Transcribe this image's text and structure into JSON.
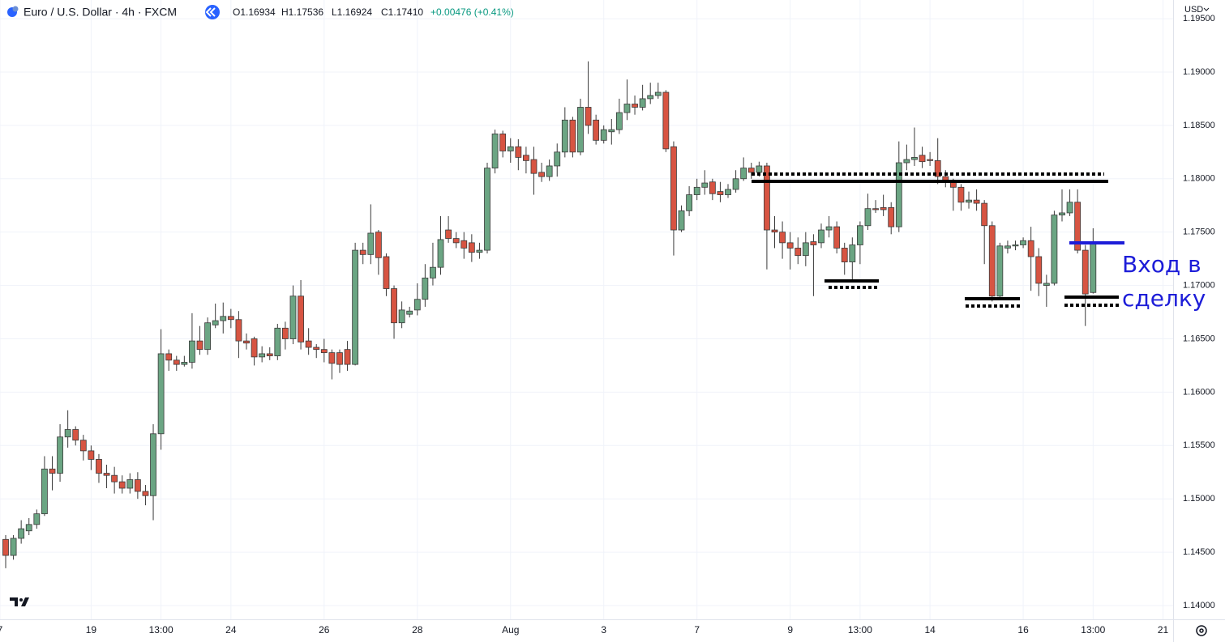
{
  "chart_data": {
    "type": "candlestick",
    "title": "Euro / U.S. Dollar · 4h · FXCM",
    "ohlc_readout": [
      "O1.16934",
      "H1.17536",
      "L1.16924",
      "C1.17410",
      "+0.00476 (+0.41%)"
    ],
    "currency": "USD",
    "annotation": "Вход в сделку",
    "up_color": "#6ba583",
    "down_color": "#d75442",
    "wick_color": "#3a3a3a",
    "grid": true,
    "xlim": [
      -0.73,
      150.3
    ],
    "xticks": [
      {
        "value": -0.73,
        "label": "7"
      },
      {
        "value": 11,
        "label": "19"
      },
      {
        "value": 20,
        "label": "13:00"
      },
      {
        "value": 29,
        "label": "24"
      },
      {
        "value": 41,
        "label": "26"
      },
      {
        "value": 53,
        "label": "28"
      },
      {
        "value": 65,
        "label": "Aug"
      },
      {
        "value": 77,
        "label": "3"
      },
      {
        "value": 89,
        "label": "7"
      },
      {
        "value": 101,
        "label": "9"
      },
      {
        "value": 110,
        "label": "13:00"
      },
      {
        "value": 119,
        "label": "14"
      },
      {
        "value": 131,
        "label": "16"
      },
      {
        "value": 140,
        "label": "13:00"
      },
      {
        "value": 149,
        "label": "21"
      }
    ],
    "ylim": [
      1.13871,
      1.19675
    ],
    "yticks": [
      {
        "value": 1.14,
        "label": "1.14000"
      },
      {
        "value": 1.145,
        "label": "1.14500"
      },
      {
        "value": 1.15,
        "label": "1.15000"
      },
      {
        "value": 1.155,
        "label": "1.15500"
      },
      {
        "value": 1.16,
        "label": "1.16000"
      },
      {
        "value": 1.165,
        "label": "1.16500"
      },
      {
        "value": 1.17,
        "label": "1.17000"
      },
      {
        "value": 1.175,
        "label": "1.17500"
      },
      {
        "value": 1.18,
        "label": "1.18000"
      },
      {
        "value": 1.185,
        "label": "1.18500"
      },
      {
        "value": 1.19,
        "label": "1.19000"
      },
      {
        "value": 1.195,
        "label": "1.19500"
      }
    ],
    "ohlc": [
      [
        1.1462,
        1.1466,
        1.1435,
        1.1447
      ],
      [
        1.1447,
        1.1466,
        1.1443,
        1.1463
      ],
      [
        1.1463,
        1.148,
        1.1458,
        1.1472
      ],
      [
        1.147,
        1.1482,
        1.1466,
        1.1476
      ],
      [
        1.1476,
        1.149,
        1.1472,
        1.1486
      ],
      [
        1.1486,
        1.154,
        1.1484,
        1.1528
      ],
      [
        1.1528,
        1.154,
        1.1508,
        1.1524
      ],
      [
        1.1524,
        1.157,
        1.1516,
        1.1558
      ],
      [
        1.1558,
        1.1583,
        1.1548,
        1.1565
      ],
      [
        1.1565,
        1.1568,
        1.155,
        1.1555
      ],
      [
        1.1555,
        1.156,
        1.1536,
        1.1545
      ],
      [
        1.1545,
        1.155,
        1.1527,
        1.1537
      ],
      [
        1.1537,
        1.1542,
        1.1515,
        1.1524
      ],
      [
        1.1524,
        1.1532,
        1.151,
        1.1522
      ],
      [
        1.1522,
        1.153,
        1.1505,
        1.1516
      ],
      [
        1.1516,
        1.1522,
        1.1505,
        1.151
      ],
      [
        1.151,
        1.1524,
        1.1505,
        1.1518
      ],
      [
        1.1518,
        1.1525,
        1.15,
        1.1507
      ],
      [
        1.1507,
        1.1513,
        1.1494,
        1.1503
      ],
      [
        1.1503,
        1.157,
        1.148,
        1.1561
      ],
      [
        1.1561,
        1.1659,
        1.1546,
        1.1636
      ],
      [
        1.1636,
        1.164,
        1.162,
        1.163
      ],
      [
        1.163,
        1.1634,
        1.162,
        1.1626
      ],
      [
        1.1626,
        1.1634,
        1.1624,
        1.1628
      ],
      [
        1.1628,
        1.1674,
        1.1622,
        1.1648
      ],
      [
        1.1648,
        1.1662,
        1.1635,
        1.164
      ],
      [
        1.164,
        1.167,
        1.1635,
        1.1665
      ],
      [
        1.1663,
        1.1683,
        1.166,
        1.1667
      ],
      [
        1.1667,
        1.1684,
        1.1655,
        1.1671
      ],
      [
        1.1671,
        1.1678,
        1.166,
        1.1668
      ],
      [
        1.1668,
        1.1676,
        1.1632,
        1.1648
      ],
      [
        1.1648,
        1.1655,
        1.164,
        1.1646
      ],
      [
        1.165,
        1.1652,
        1.1625,
        1.1633
      ],
      [
        1.1633,
        1.1643,
        1.1628,
        1.1636
      ],
      [
        1.1636,
        1.1642,
        1.163,
        1.1634
      ],
      [
        1.1634,
        1.1664,
        1.163,
        1.166
      ],
      [
        1.166,
        1.1666,
        1.164,
        1.165
      ],
      [
        1.165,
        1.17,
        1.1645,
        1.169
      ],
      [
        1.169,
        1.1705,
        1.164,
        1.1647
      ],
      [
        1.1648,
        1.166,
        1.1635,
        1.1642
      ],
      [
        1.1642,
        1.1645,
        1.1632,
        1.164
      ],
      [
        1.164,
        1.165,
        1.1628,
        1.1637
      ],
      [
        1.1637,
        1.164,
        1.1612,
        1.1627
      ],
      [
        1.1637,
        1.164,
        1.1618,
        1.1626
      ],
      [
        1.164,
        1.1648,
        1.162,
        1.1626
      ],
      [
        1.1626,
        1.174,
        1.1625,
        1.1733
      ],
      [
        1.1733,
        1.174,
        1.172,
        1.1729
      ],
      [
        1.1729,
        1.1776,
        1.172,
        1.1749
      ],
      [
        1.175,
        1.1752,
        1.171,
        1.1726
      ],
      [
        1.1727,
        1.173,
        1.169,
        1.1697
      ],
      [
        1.1697,
        1.17,
        1.165,
        1.1665
      ],
      [
        1.1665,
        1.1685,
        1.166,
        1.1677
      ],
      [
        1.1673,
        1.168,
        1.167,
        1.1676
      ],
      [
        1.1677,
        1.1702,
        1.1672,
        1.1687
      ],
      [
        1.1687,
        1.172,
        1.168,
        1.1707
      ],
      [
        1.1707,
        1.174,
        1.17,
        1.1717
      ],
      [
        1.1717,
        1.1765,
        1.171,
        1.1743
      ],
      [
        1.1752,
        1.1765,
        1.174,
        1.1744
      ],
      [
        1.1744,
        1.175,
        1.1735,
        1.174
      ],
      [
        1.1742,
        1.175,
        1.1725,
        1.1735
      ],
      [
        1.174,
        1.1748,
        1.1722,
        1.1731
      ],
      [
        1.1731,
        1.174,
        1.1725,
        1.1733
      ],
      [
        1.1733,
        1.1815,
        1.173,
        1.181
      ],
      [
        1.181,
        1.1846,
        1.1805,
        1.1842
      ],
      [
        1.1842,
        1.1845,
        1.182,
        1.1826
      ],
      [
        1.1826,
        1.1838,
        1.1815,
        1.183
      ],
      [
        1.183,
        1.1837,
        1.1808,
        1.182
      ],
      [
        1.1822,
        1.183,
        1.1805,
        1.1817
      ],
      [
        1.1818,
        1.183,
        1.1785,
        1.1805
      ],
      [
        1.1806,
        1.1815,
        1.1797,
        1.1802
      ],
      [
        1.1802,
        1.1818,
        1.1798,
        1.1812
      ],
      [
        1.1812,
        1.1833,
        1.1802,
        1.1825
      ],
      [
        1.1825,
        1.1867,
        1.182,
        1.1855
      ],
      [
        1.1855,
        1.1858,
        1.182,
        1.1825
      ],
      [
        1.1825,
        1.1875,
        1.1822,
        1.1867
      ],
      [
        1.1867,
        1.191,
        1.1842,
        1.185
      ],
      [
        1.1855,
        1.186,
        1.1832,
        1.1836
      ],
      [
        1.1836,
        1.185,
        1.1833,
        1.1846
      ],
      [
        1.1844,
        1.1856,
        1.1832,
        1.1846
      ],
      [
        1.1846,
        1.1875,
        1.1842,
        1.1862
      ],
      [
        1.1862,
        1.1893,
        1.1855,
        1.187
      ],
      [
        1.187,
        1.1878,
        1.186,
        1.1867
      ],
      [
        1.1867,
        1.1888,
        1.1864,
        1.1875
      ],
      [
        1.1875,
        1.189,
        1.187,
        1.1878
      ],
      [
        1.1878,
        1.189,
        1.1875,
        1.1881
      ],
      [
        1.1881,
        1.1883,
        1.1825,
        1.1828
      ],
      [
        1.183,
        1.1835,
        1.1728,
        1.1752
      ],
      [
        1.1752,
        1.1775,
        1.175,
        1.177
      ],
      [
        1.177,
        1.1793,
        1.1765,
        1.1785
      ],
      [
        1.1785,
        1.18,
        1.178,
        1.1792
      ],
      [
        1.1792,
        1.1808,
        1.1785,
        1.1796
      ],
      [
        1.1797,
        1.18,
        1.178,
        1.1786
      ],
      [
        1.1788,
        1.1797,
        1.1778,
        1.1785
      ],
      [
        1.1785,
        1.1795,
        1.1782,
        1.179
      ],
      [
        1.179,
        1.1808,
        1.1787,
        1.18
      ],
      [
        1.18,
        1.182,
        1.1798,
        1.181
      ],
      [
        1.181,
        1.1815,
        1.18,
        1.1806
      ],
      [
        1.1806,
        1.1816,
        1.1802,
        1.1812
      ],
      [
        1.1812,
        1.1815,
        1.1715,
        1.1752
      ],
      [
        1.1752,
        1.1765,
        1.1735,
        1.175
      ],
      [
        1.175,
        1.176,
        1.1725,
        1.174
      ],
      [
        1.174,
        1.175,
        1.1715,
        1.1735
      ],
      [
        1.1735,
        1.1745,
        1.172,
        1.1728
      ],
      [
        1.1728,
        1.175,
        1.1718,
        1.174
      ],
      [
        1.1741,
        1.1748,
        1.169,
        1.1738
      ],
      [
        1.174,
        1.1758,
        1.1735,
        1.1752
      ],
      [
        1.1752,
        1.1765,
        1.1745,
        1.1755
      ],
      [
        1.1755,
        1.176,
        1.173,
        1.1735
      ],
      [
        1.1735,
        1.174,
        1.171,
        1.1722
      ],
      [
        1.1722,
        1.1745,
        1.1705,
        1.1738
      ],
      [
        1.1738,
        1.176,
        1.172,
        1.1756
      ],
      [
        1.1756,
        1.1786,
        1.1752,
        1.1772
      ],
      [
        1.1772,
        1.178,
        1.1768,
        1.1771
      ],
      [
        1.1773,
        1.1785,
        1.1765,
        1.1771
      ],
      [
        1.1773,
        1.1778,
        1.1748,
        1.1755
      ],
      [
        1.1755,
        1.1835,
        1.175,
        1.1815
      ],
      [
        1.1815,
        1.1832,
        1.1808,
        1.1818
      ],
      [
        1.1818,
        1.1848,
        1.1812,
        1.182
      ],
      [
        1.1822,
        1.183,
        1.181,
        1.1816
      ],
      [
        1.1818,
        1.1825,
        1.1812,
        1.1817
      ],
      [
        1.1817,
        1.1838,
        1.1795,
        1.1802
      ],
      [
        1.1802,
        1.1808,
        1.1792,
        1.1797
      ],
      [
        1.1797,
        1.18,
        1.177,
        1.1792
      ],
      [
        1.1792,
        1.1795,
        1.177,
        1.1778
      ],
      [
        1.1778,
        1.1788,
        1.1772,
        1.178
      ],
      [
        1.178,
        1.179,
        1.177,
        1.1777
      ],
      [
        1.1777,
        1.178,
        1.172,
        1.1756
      ],
      [
        1.1756,
        1.176,
        1.1685,
        1.169
      ],
      [
        1.169,
        1.174,
        1.1688,
        1.1737
      ],
      [
        1.1735,
        1.1742,
        1.173,
        1.1737
      ],
      [
        1.1737,
        1.1742,
        1.1733,
        1.1738
      ],
      [
        1.1738,
        1.1745,
        1.1735,
        1.1742
      ],
      [
        1.1742,
        1.1755,
        1.1695,
        1.1727
      ],
      [
        1.1727,
        1.1735,
        1.169,
        1.1702
      ],
      [
        1.17,
        1.171,
        1.168,
        1.1702
      ],
      [
        1.1702,
        1.177,
        1.17,
        1.1766
      ],
      [
        1.1766,
        1.179,
        1.176,
        1.1768
      ],
      [
        1.1768,
        1.179,
        1.1765,
        1.1778
      ],
      [
        1.1778,
        1.179,
        1.173,
        1.1733
      ],
      [
        1.1733,
        1.1738,
        1.1662,
        1.1692
      ],
      [
        1.16934,
        1.17536,
        1.16924,
        1.1741
      ]
    ]
  }
}
